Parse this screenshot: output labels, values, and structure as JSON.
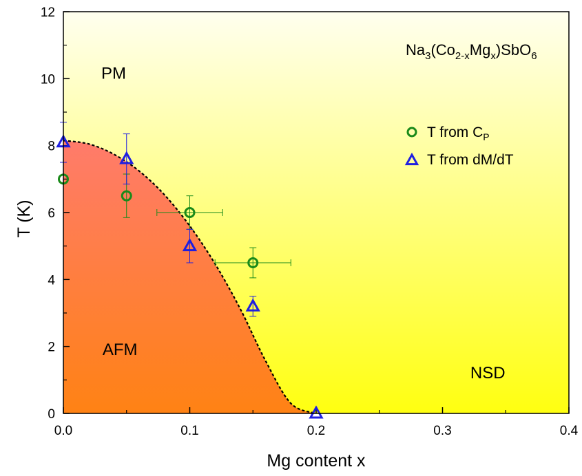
{
  "chart_data": {
    "type": "scatter",
    "title": "",
    "xlabel": "Mg content x",
    "ylabel": "T (K)",
    "xlim": [
      0.0,
      0.4
    ],
    "ylim": [
      0,
      12
    ],
    "xticks": [
      0.0,
      0.1,
      0.2,
      0.3,
      0.4
    ],
    "xtick_labels": [
      "0.0",
      "0.1",
      "0.2",
      "0.3",
      "0.4"
    ],
    "yticks": [
      0,
      2,
      4,
      6,
      8,
      10,
      12
    ],
    "ytick_labels": [
      "0",
      "2",
      "4",
      "6",
      "8",
      "10",
      "12"
    ],
    "formula": {
      "a": "Na",
      "b": "3",
      "c": "(Co",
      "d": "2-x",
      "e": "Mg",
      "f": "x",
      "g": ")SbO",
      "h": "6"
    },
    "regions": [
      {
        "label": "PM",
        "x": 0.03,
        "y": 10.0
      },
      {
        "label": "AFM",
        "x": 0.031,
        "y": 1.75
      },
      {
        "label": "NSD",
        "x": 0.322,
        "y": 1.05
      }
    ],
    "legend": {
      "position": "right",
      "entries": [
        {
          "marker": "circle",
          "text": "T from C",
          "sub": "P"
        },
        {
          "marker": "triangle",
          "text": "T from dM/dT",
          "sub": ""
        }
      ]
    },
    "series": [
      {
        "marker": "circle",
        "color": "#1a8a1a",
        "points": [
          {
            "x": 0.0,
            "y": 7.0,
            "yerr": 0,
            "xerr": 0
          },
          {
            "x": 0.05,
            "y": 6.5,
            "yerr": 0.65,
            "xerr": 0
          },
          {
            "x": 0.1,
            "y": 6.0,
            "yerr": 0.5,
            "xerr": 0.013
          },
          {
            "x": 0.15,
            "y": 4.5,
            "yerr": 0.45,
            "xerr": 0.015
          }
        ]
      },
      {
        "marker": "triangle",
        "color": "#1f1fe0",
        "points": [
          {
            "x": 0.0,
            "y": 8.1,
            "yerr": 0.6,
            "xerr": 0
          },
          {
            "x": 0.05,
            "y": 7.6,
            "yerr": 0.75,
            "xerr": 0
          },
          {
            "x": 0.1,
            "y": 5.0,
            "yerr": 0.5,
            "xerr": 0
          },
          {
            "x": 0.15,
            "y": 3.2,
            "yerr": 0.3,
            "xerr": 0
          },
          {
            "x": 0.2,
            "y": 0.0,
            "yerr": 0,
            "xerr": 0
          }
        ]
      }
    ],
    "phase_boundary": {
      "style": "dashed",
      "color": "#000000",
      "x": [
        0.0,
        0.02,
        0.04,
        0.06,
        0.08,
        0.1,
        0.12,
        0.14,
        0.16,
        0.18,
        0.2
      ],
      "y": [
        8.15,
        8.05,
        7.74,
        7.24,
        6.53,
        5.6,
        4.47,
        3.12,
        1.57,
        0.3,
        0.0
      ]
    },
    "colors": {
      "afm_top": "#ff7b6b",
      "afm_bottom": "#ff8214",
      "pm_top": "#ffffef",
      "pm_bottom": "#ffff10"
    }
  }
}
